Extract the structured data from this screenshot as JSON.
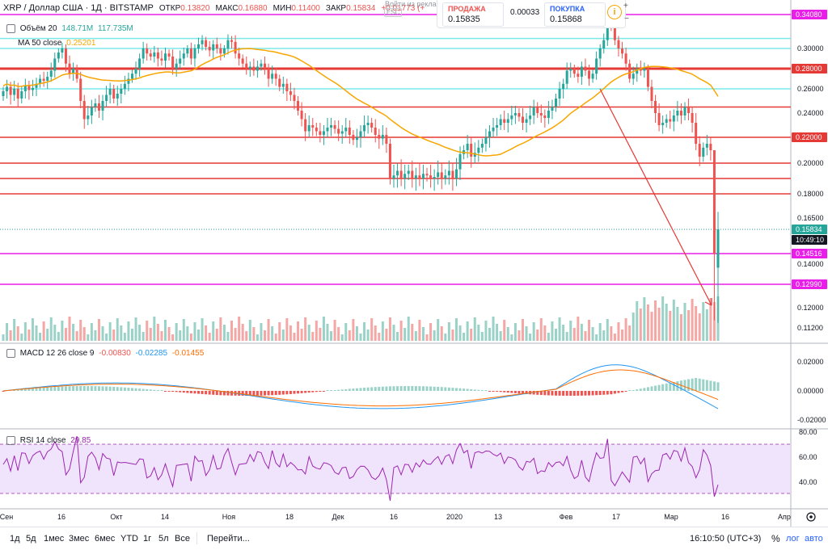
{
  "header": {
    "symbol": "XRP / Доллар США · 1Д · BITSTAMP",
    "open_label": "ОТКР",
    "open": "0.13820",
    "high_label": "МАКС",
    "high": "0.16880",
    "low_label": "МИН",
    "low": "0.11400",
    "close_label": "ЗАКР",
    "close": "0.15834",
    "change": "+0.01773 (+"
  },
  "trade": {
    "login_hint": "Войти из реклам",
    "esc": "ESC",
    "sell_label": "ПРОДАЖА",
    "sell": "0.15835",
    "spread": "0.00033",
    "buy_label": "ПОКУПКА",
    "buy": "0.15868",
    "info_icon": "i",
    "plus": "+",
    "minus": "−"
  },
  "indicators": {
    "volume": {
      "label": "Объём 20",
      "v1": "148.71M",
      "v2": "117.735M"
    },
    "ma": {
      "label": "MA 50 close",
      "value": "0.25201"
    },
    "macd": {
      "label": "MACD 12 26 close 9",
      "v1": "-0.00830",
      "v2": "-0.02285",
      "v3": "-0.01455"
    },
    "rsi": {
      "label": "RSI 14 close",
      "value": "29.85"
    }
  },
  "colors": {
    "up": "#26a69a",
    "down": "#ef5350",
    "up_light": "#9bd2c8",
    "down_light": "#f4a7a5",
    "ma": "#f7a600",
    "magenta": "#e91ee9",
    "cyan": "#7de8e8",
    "red_line": "#e53935",
    "macd": "#2196f3",
    "signal": "#ff6d00",
    "rsi_line": "#9c27b0",
    "rsi_band": "#ead7fb",
    "accent": "#2962ff"
  },
  "price_axis": {
    "labels": [
      "0.30000",
      "0.26000",
      "0.24000",
      "0.20000",
      "0.18000",
      "0.16500",
      "0.14000",
      "0.12000",
      "0.11200"
    ],
    "highlight": [
      {
        "text": "0.34080",
        "kind": "magenta"
      },
      {
        "text": "0.28000",
        "kind": "red"
      },
      {
        "text": "0.22000",
        "kind": "red"
      },
      {
        "text": "0.15834",
        "kind": "teal"
      },
      {
        "text": "10:49:10",
        "kind": "dark"
      },
      {
        "text": "0.14516",
        "kind": "magenta"
      },
      {
        "text": "0.12990",
        "kind": "magenta"
      }
    ]
  },
  "macd_axis": [
    "0.02000",
    "0.00000",
    "-0.02000"
  ],
  "rsi_axis": [
    "80.00",
    "60.00",
    "40.00"
  ],
  "x_axis": [
    "Сен",
    "16",
    "Окт",
    "14",
    "Ноя",
    "18",
    "Дек",
    "16",
    "2020",
    "13",
    "Фев",
    "17",
    "Мар",
    "16",
    "Апр"
  ],
  "toolbar": {
    "timeframes": [
      "1д",
      "5д",
      "1мес",
      "3мес",
      "6мес",
      "YTD",
      "1г",
      "5л",
      "Все"
    ],
    "goto": "Перейти...",
    "clock": "16:10:50 (UTC+3)",
    "pct": "%",
    "log": "лог",
    "auto": "авто"
  },
  "chart_data": {
    "type": "candlestick",
    "period": "1D",
    "visible_prices": {
      "open": 0.1382,
      "high": 0.1688,
      "low": 0.114,
      "close": 0.15834
    },
    "key_levels": [
      {
        "value": 0.3408,
        "style": "magenta"
      },
      {
        "value": 0.312,
        "style": "cyan"
      },
      {
        "value": 0.3,
        "style": "cyan"
      },
      {
        "value": 0.28,
        "style": "red-thick"
      },
      {
        "value": 0.26,
        "style": "cyan"
      },
      {
        "value": 0.245,
        "style": "red"
      },
      {
        "value": 0.22,
        "style": "red"
      },
      {
        "value": 0.2,
        "style": "red"
      },
      {
        "value": 0.19,
        "style": "red"
      },
      {
        "value": 0.18,
        "style": "red"
      },
      {
        "value": 0.14516,
        "style": "magenta"
      },
      {
        "value": 0.1299,
        "style": "magenta"
      }
    ],
    "closes": [
      0.258,
      0.262,
      0.255,
      0.26,
      0.252,
      0.258,
      0.263,
      0.259,
      0.261,
      0.265,
      0.27,
      0.268,
      0.272,
      0.278,
      0.29,
      0.296,
      0.3,
      0.285,
      0.275,
      0.28,
      0.27,
      0.25,
      0.235,
      0.238,
      0.245,
      0.248,
      0.242,
      0.25,
      0.255,
      0.26,
      0.252,
      0.256,
      0.26,
      0.265,
      0.27,
      0.275,
      0.28,
      0.29,
      0.3,
      0.295,
      0.292,
      0.296,
      0.29,
      0.288,
      0.295,
      0.292,
      0.28,
      0.285,
      0.29,
      0.295,
      0.3,
      0.29,
      0.3,
      0.305,
      0.31,
      0.302,
      0.298,
      0.305,
      0.3,
      0.295,
      0.3,
      0.31,
      0.308,
      0.295,
      0.29,
      0.285,
      0.28,
      0.282,
      0.278,
      0.282,
      0.285,
      0.28,
      0.27,
      0.275,
      0.27,
      0.262,
      0.265,
      0.258,
      0.255,
      0.25,
      0.242,
      0.235,
      0.225,
      0.23,
      0.228,
      0.225,
      0.222,
      0.225,
      0.228,
      0.23,
      0.227,
      0.223,
      0.225,
      0.228,
      0.222,
      0.218,
      0.22,
      0.225,
      0.23,
      0.232,
      0.228,
      0.222,
      0.219,
      0.222,
      0.215,
      0.19,
      0.192,
      0.195,
      0.19,
      0.193,
      0.195,
      0.19,
      0.192,
      0.19,
      0.193,
      0.192,
      0.19,
      0.191,
      0.194,
      0.19,
      0.192,
      0.195,
      0.19,
      0.196,
      0.207,
      0.21,
      0.215,
      0.205,
      0.208,
      0.212,
      0.215,
      0.22,
      0.225,
      0.228,
      0.23,
      0.235,
      0.232,
      0.235,
      0.238,
      0.24,
      0.237,
      0.232,
      0.235,
      0.238,
      0.245,
      0.24,
      0.238,
      0.236,
      0.242,
      0.245,
      0.252,
      0.26,
      0.265,
      0.278,
      0.28,
      0.275,
      0.272,
      0.282,
      0.278,
      0.27,
      0.275,
      0.29,
      0.3,
      0.31,
      0.335,
      0.325,
      0.31,
      0.3,
      0.295,
      0.285,
      0.27,
      0.275,
      0.28,
      0.278,
      0.28,
      0.262,
      0.25,
      0.24,
      0.23,
      0.232,
      0.235,
      0.233,
      0.238,
      0.242,
      0.238,
      0.245,
      0.24,
      0.232,
      0.215,
      0.205,
      0.212,
      0.215,
      0.21,
      0.145,
      0.158
    ],
    "ma50_note": "MA 50 close",
    "annotation": "red arrow from Feb high projecting down toward 0.12"
  }
}
